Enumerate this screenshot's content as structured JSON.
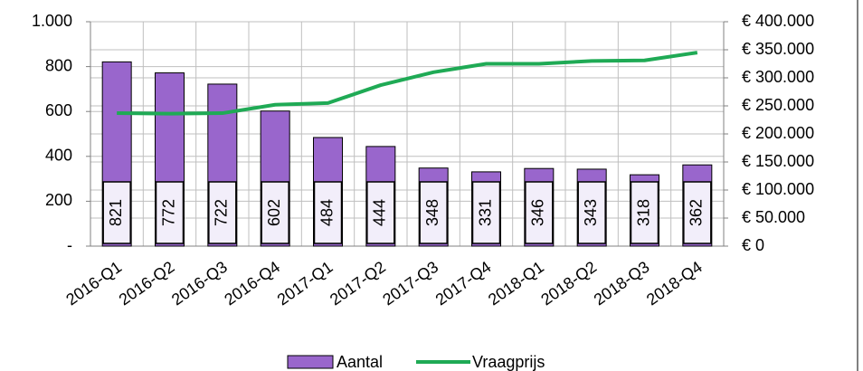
{
  "chart_data": {
    "type": "bar",
    "categories": [
      "2016-Q1",
      "2016-Q2",
      "2016-Q3",
      "2016-Q4",
      "2017-Q1",
      "2017-Q2",
      "2017-Q3",
      "2017-Q4",
      "2018-Q1",
      "2018-Q2",
      "2018-Q3",
      "2018-Q4"
    ],
    "series": [
      {
        "name": "Aantal",
        "type": "bar",
        "color": "#9966cc",
        "values": [
          821,
          772,
          722,
          602,
          484,
          444,
          348,
          331,
          346,
          343,
          318,
          362
        ]
      },
      {
        "name": "Vraagprijs",
        "type": "line",
        "axis": "y2",
        "color": "#1faa55",
        "values": [
          237000,
          236000,
          237000,
          252000,
          255000,
          287000,
          310000,
          325000,
          325000,
          330000,
          331000,
          345000
        ]
      }
    ],
    "ylim": [
      0,
      1000
    ],
    "yticks": [
      {
        "value": 0,
        "label": "-"
      },
      200,
      400,
      600,
      800,
      {
        "value": 1000,
        "label": "1.000"
      }
    ],
    "y2lim": [
      0,
      400000
    ],
    "y2ticks": [
      {
        "value": 0,
        "label": "€ 0"
      },
      {
        "value": 50000,
        "label": "€ 50.000"
      },
      {
        "value": 100000,
        "label": "€ 100.000"
      },
      {
        "value": 150000,
        "label": "€ 150.000"
      },
      {
        "value": 200000,
        "label": "€ 200.000"
      },
      {
        "value": 250000,
        "label": "€ 250.000"
      },
      {
        "value": 300000,
        "label": "€ 300.000"
      },
      {
        "value": 350000,
        "label": "€ 350.000"
      },
      {
        "value": 400000,
        "label": "€ 400.000"
      }
    ],
    "grid": true,
    "legend": "bottom"
  }
}
